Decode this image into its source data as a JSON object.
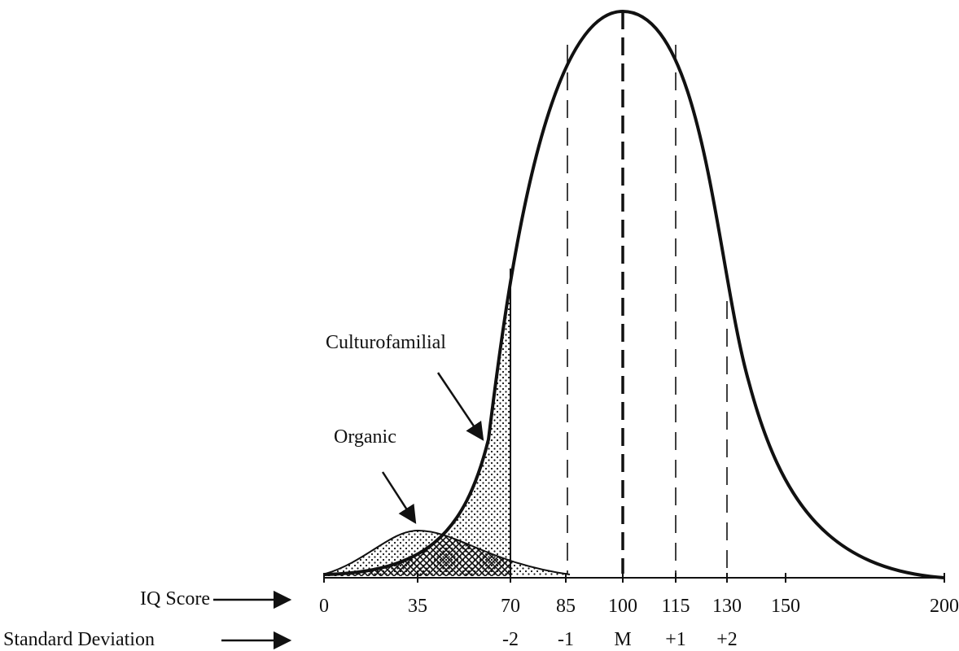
{
  "labels": {
    "culturofamilial": "Culturofamilial",
    "organic": "Organic"
  },
  "axis": {
    "iq_label": "IQ Score",
    "iq_ticks": [
      "0",
      "35",
      "70",
      "85",
      "100",
      "115",
      "130",
      "150",
      "200"
    ],
    "sd_label": "Standard Deviation",
    "sd_ticks": [
      "-2",
      "-1",
      "M",
      "+1",
      "+2"
    ]
  }
}
